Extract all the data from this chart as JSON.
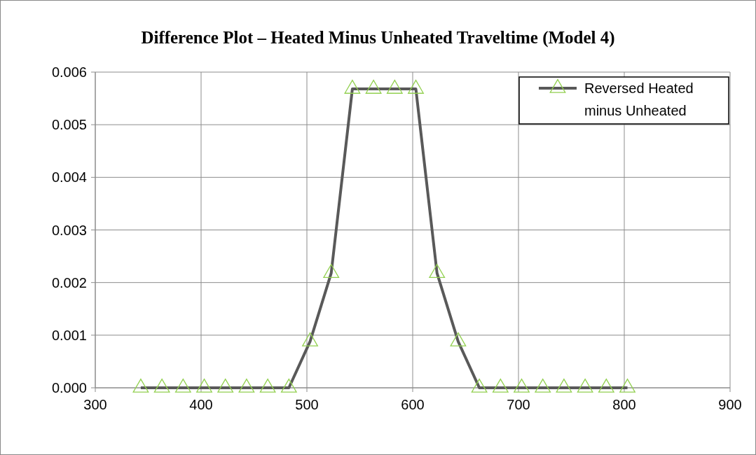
{
  "chart_data": {
    "type": "line",
    "title": "Difference Plot – Heated Minus Unheated Traveltime (Model 4)",
    "x": [
      343,
      363,
      383,
      403,
      423,
      443,
      463,
      483,
      503,
      523,
      543,
      563,
      583,
      603,
      623,
      643,
      663,
      683,
      703,
      723,
      743,
      763,
      783,
      803
    ],
    "series": [
      {
        "name": "Reversed Heated minus Unheated",
        "color": "#595959",
        "values": [
          0,
          0,
          0,
          0,
          0,
          0,
          0,
          0,
          0.00088,
          0.00218,
          0.00568,
          0.00568,
          0.00568,
          0.00568,
          0.00218,
          0.00088,
          0,
          0,
          0,
          0,
          0,
          0,
          0,
          0
        ]
      },
      {
        "type": "scatter",
        "marker": "triangle",
        "color": "#92d050",
        "values": [
          0,
          0,
          0,
          0,
          0,
          0,
          0,
          0,
          0.00088,
          0.00218,
          0.00568,
          0.00568,
          0.00568,
          0.00568,
          0.00218,
          0.00088,
          0,
          0,
          0,
          0,
          0,
          0,
          0,
          0
        ]
      }
    ],
    "xlim": [
      300,
      900
    ],
    "xticks": [
      300,
      400,
      500,
      600,
      700,
      800,
      900
    ],
    "ylim": [
      0,
      0.006
    ],
    "yticks": [
      {
        "value": 0,
        "label": "0.000"
      },
      {
        "value": 0.001,
        "label": "0.001"
      },
      {
        "value": 0.002,
        "label": "0.002"
      },
      {
        "value": 0.003,
        "label": "0.003"
      },
      {
        "value": 0.004,
        "label": "0.004"
      },
      {
        "value": 0.005,
        "label": "0.005"
      },
      {
        "value": 0.006,
        "label": "0.006"
      }
    ],
    "grid": true,
    "legend": "top right",
    "line_style": "solid"
  }
}
